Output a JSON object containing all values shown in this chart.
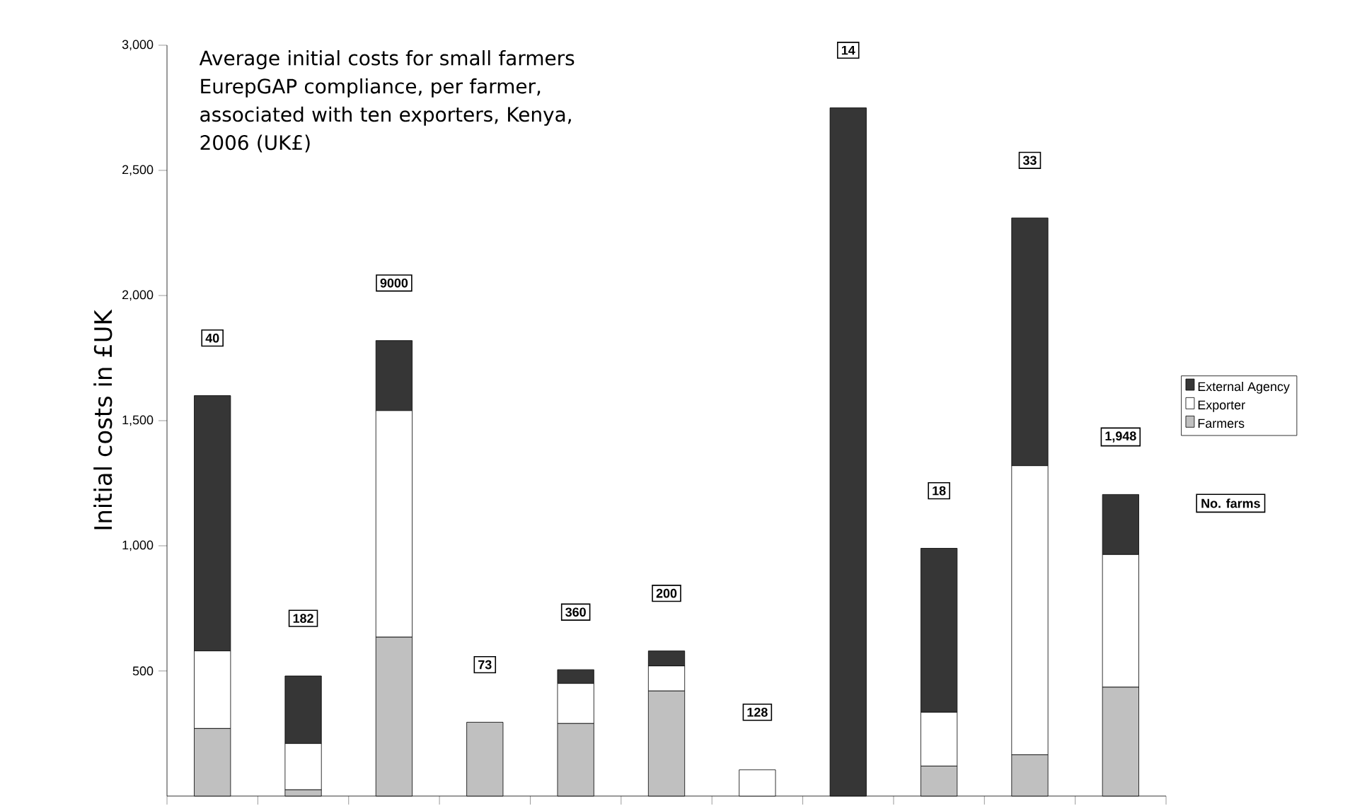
{
  "chart_data": {
    "type": "bar",
    "stacked": true,
    "title": "Average initial costs for small farmers EurepGAP compliance, per farmer, associated with ten exporters, Kenya, 2006 (UK£)",
    "ylabel": "Initial costs in £UK",
    "categories": [
      null,
      null,
      null,
      null,
      null,
      null,
      null,
      null,
      null,
      null,
      null
    ],
    "series": [
      {
        "name": "Farmers",
        "color": "#c0c0c0",
        "values": [
          270,
          25,
          635,
          295,
          290,
          420,
          0,
          0,
          120,
          165,
          435
        ]
      },
      {
        "name": "Exporter",
        "color": "#ffffff",
        "values": [
          310,
          185,
          905,
          0,
          160,
          100,
          105,
          0,
          215,
          1155,
          530
        ]
      },
      {
        "name": "External Agency",
        "color": "#363636",
        "values": [
          1020,
          270,
          280,
          0,
          55,
          60,
          0,
          2750,
          655,
          990,
          240
        ]
      }
    ],
    "ylim": [
      0,
      3000
    ],
    "yticks": [
      {
        "value": 500,
        "label": "500"
      },
      {
        "value": 1000,
        "label": "1,000"
      },
      {
        "value": 1500,
        "label": "1,500"
      },
      {
        "value": 2000,
        "label": "2,000"
      },
      {
        "value": 2500,
        "label": "2,500"
      },
      {
        "value": 3000,
        "label": "3,000"
      }
    ],
    "annotations": [
      "40",
      "182",
      "9000",
      "73",
      "360",
      "200",
      "128",
      "14",
      "18",
      "33",
      "1,948",
      "No. farms"
    ],
    "legend": "right",
    "grid": false
  }
}
